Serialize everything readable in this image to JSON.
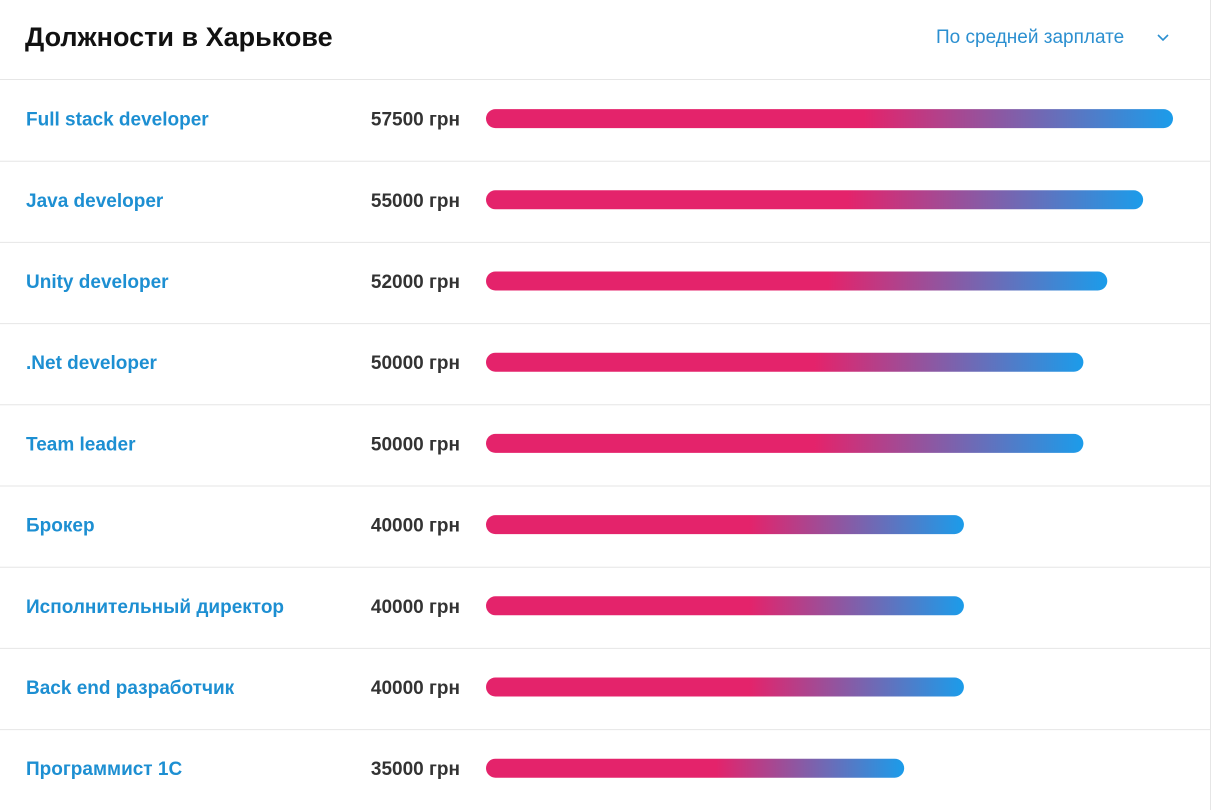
{
  "chart_data": {
    "type": "bar",
    "title": "Должности в Харькове",
    "sort_label": "По средней зарплате",
    "categories": [
      "Full stack developer",
      "Java developer",
      "Unity developer",
      ".Net developer",
      "Team leader",
      "Брокер",
      "Исполнительный директор",
      "Back end разработчик",
      "Программист 1С"
    ],
    "values": [
      57500,
      55000,
      52000,
      50000,
      50000,
      40000,
      40000,
      40000,
      35000
    ],
    "value_labels": [
      "57500 грн",
      "55000 грн",
      "52000 грн",
      "50000 грн",
      "50000 грн",
      "40000 грн",
      "40000 грн",
      "40000 грн",
      "35000 грн"
    ],
    "colors": [
      "#e4236b",
      "#1b9cea"
    ]
  }
}
